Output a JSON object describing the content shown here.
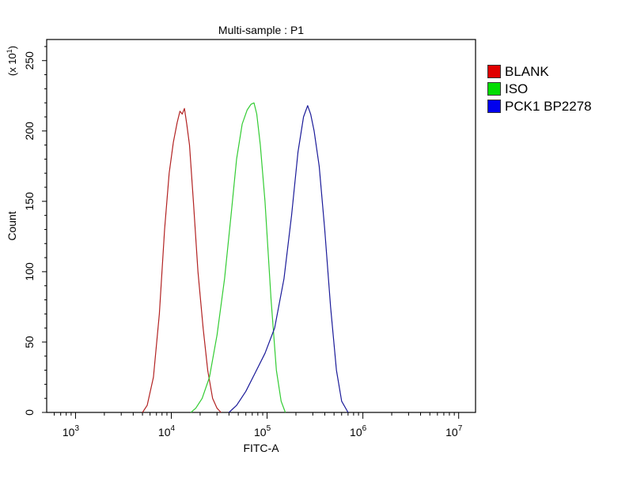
{
  "chart_data": {
    "type": "line",
    "title": "Multi-sample : P1",
    "xlabel": "FITC-A",
    "ylabel": "Count",
    "y_multiplier_label": "(x 10^1)",
    "x_scale": "log",
    "xlim": [
      500,
      15000000
    ],
    "ylim": [
      0,
      265
    ],
    "x_ticks": [
      {
        "base": "10",
        "exp": "3",
        "value": 1000
      },
      {
        "base": "10",
        "exp": "4",
        "value": 10000
      },
      {
        "base": "10",
        "exp": "5",
        "value": 100000
      },
      {
        "base": "10",
        "exp": "6",
        "value": 1000000
      },
      {
        "base": "10",
        "exp": "7",
        "value": 10000000
      }
    ],
    "y_ticks": [
      "0",
      "50",
      "100",
      "150",
      "200",
      "250"
    ],
    "grid": false,
    "legend_position": "right",
    "series": [
      {
        "name": "BLANK",
        "color": "#b22222",
        "swatch": "#e00000",
        "x": [
          5000,
          5600,
          6500,
          7500,
          8500,
          9500,
          10500,
          11500,
          12300,
          13000,
          13700,
          14500,
          15500,
          17000,
          19000,
          21500,
          24000,
          27000,
          30000,
          33000
        ],
        "y": [
          0,
          5,
          25,
          70,
          130,
          170,
          192,
          206,
          214,
          212,
          216,
          205,
          190,
          150,
          100,
          60,
          30,
          10,
          3,
          0
        ]
      },
      {
        "name": "ISO",
        "color": "#33cc33",
        "swatch": "#00dd00",
        "x": [
          16000,
          18000,
          21000,
          25000,
          30000,
          36000,
          42000,
          48000,
          55000,
          62000,
          68000,
          73000,
          78000,
          85000,
          95000,
          110000,
          125000,
          140000,
          155000
        ],
        "y": [
          0,
          3,
          10,
          25,
          55,
          95,
          140,
          180,
          205,
          215,
          219,
          220,
          212,
          190,
          150,
          80,
          30,
          8,
          0
        ]
      },
      {
        "name": "PCK1 BP2278",
        "color": "#1a1a99",
        "swatch": "#0000ee",
        "x": [
          40000,
          48000,
          60000,
          75000,
          95000,
          120000,
          150000,
          180000,
          210000,
          240000,
          265000,
          285000,
          310000,
          350000,
          400000,
          460000,
          530000,
          600000,
          700000
        ],
        "y": [
          0,
          5,
          15,
          28,
          42,
          60,
          95,
          140,
          185,
          210,
          218,
          212,
          200,
          175,
          130,
          75,
          30,
          8,
          0
        ]
      }
    ]
  }
}
